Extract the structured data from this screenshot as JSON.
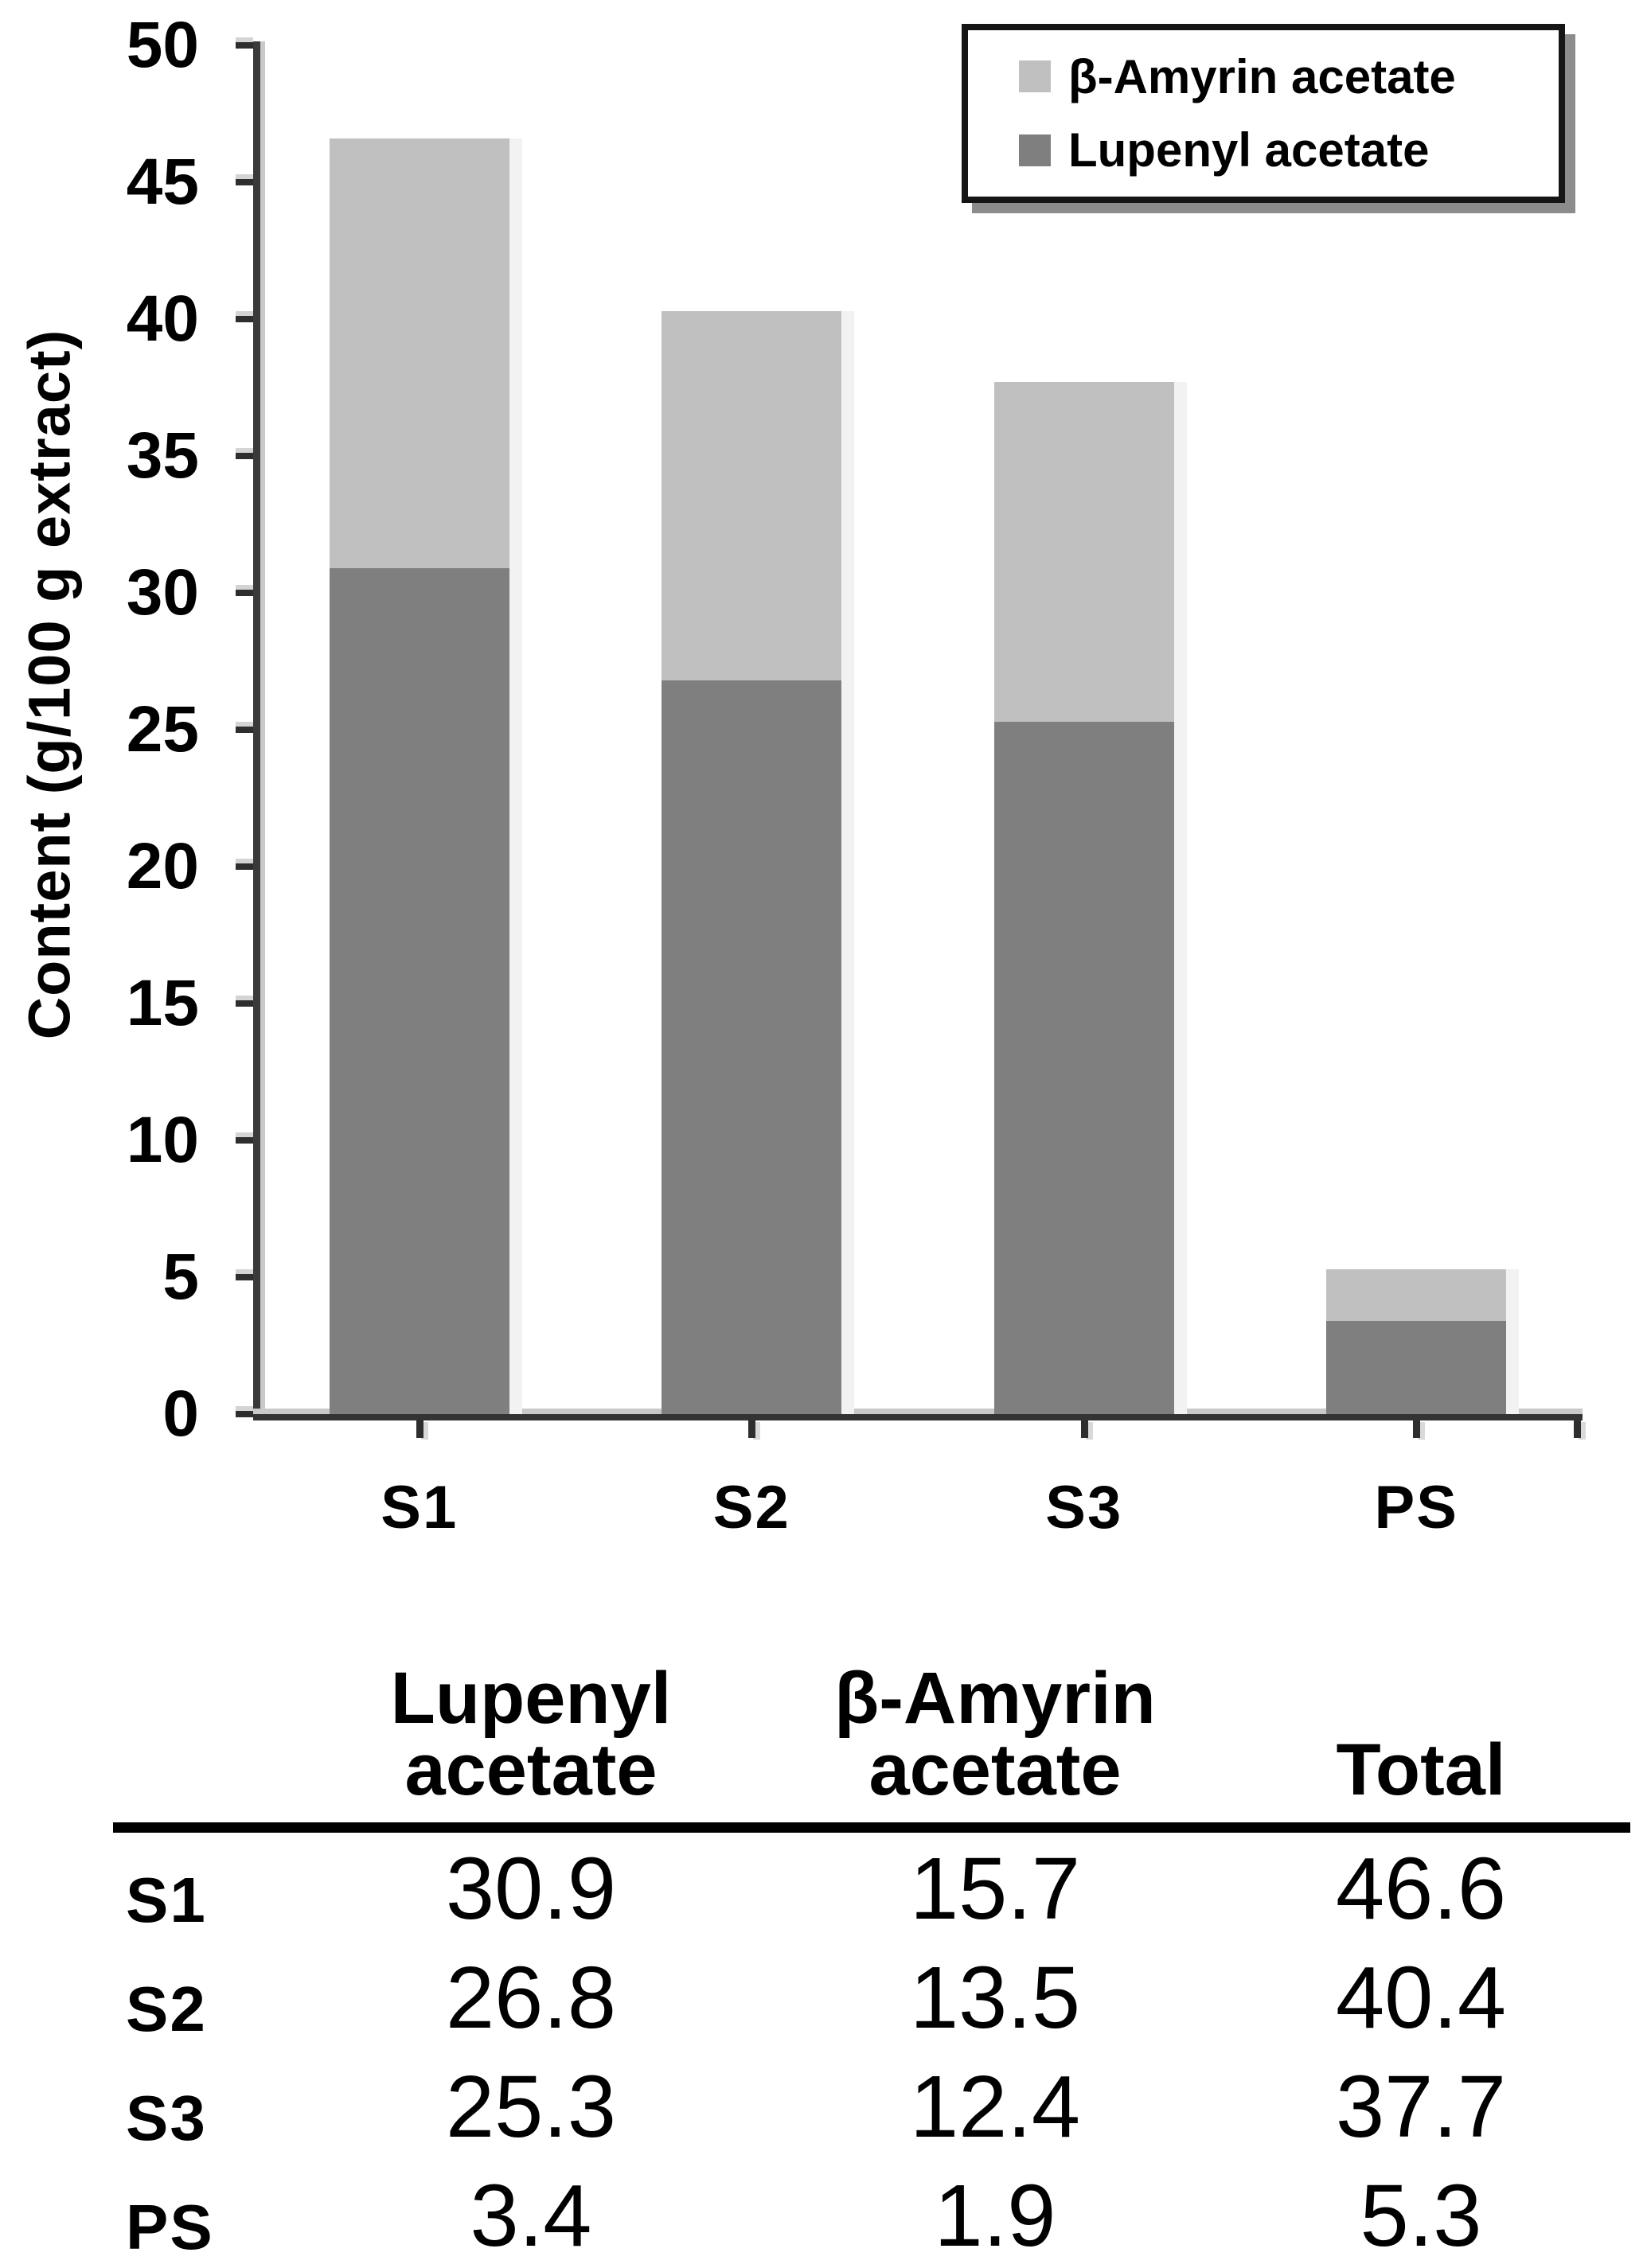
{
  "figure": {
    "background": "#ffffff",
    "text_color": "#000000"
  },
  "chart_data": {
    "type": "bar",
    "stacked": true,
    "title": "",
    "xlabel": "",
    "ylabel": "Content (g/100 g extract)",
    "categories": [
      "S1",
      "S2",
      "S3",
      "PS"
    ],
    "series": [
      {
        "name": "Lupenyl acetate",
        "color": "#7f7f7f",
        "values": [
          30.9,
          26.8,
          25.3,
          3.4
        ]
      },
      {
        "name": "β-Amyrin acetate",
        "color": "#c0c0c0",
        "values": [
          15.7,
          13.5,
          12.4,
          1.9
        ]
      }
    ],
    "totals": [
      46.6,
      40.4,
      37.7,
      5.3
    ],
    "ylim": [
      0,
      50
    ],
    "ytick_step": 5,
    "yticks": [
      0,
      5,
      10,
      15,
      20,
      25,
      30,
      35,
      40,
      45,
      50
    ],
    "grid": false,
    "legend_position": "top-right",
    "legend_order": [
      "β-Amyrin acetate",
      "Lupenyl acetate"
    ],
    "bar_shadow_color": "#f2f2f2",
    "axis_color": "#3a3a3a",
    "axis_shadow_color": "#c9c9c9",
    "legend_shadow_color": "#8c8c8c"
  },
  "table": {
    "header_line1": [
      "Lupenyl",
      "β-Amyrin",
      ""
    ],
    "header_line2": [
      "acetate",
      "acetate",
      "Total"
    ],
    "rows": [
      {
        "label": "S1",
        "values": [
          "30.9",
          "15.7",
          "46.6"
        ]
      },
      {
        "label": "S2",
        "values": [
          "26.8",
          "13.5",
          "40.4"
        ]
      },
      {
        "label": "S3",
        "values": [
          "25.3",
          "12.4",
          "37.7"
        ]
      },
      {
        "label": "PS",
        "values": [
          "3.4",
          "1.9",
          "5.3"
        ]
      }
    ]
  }
}
